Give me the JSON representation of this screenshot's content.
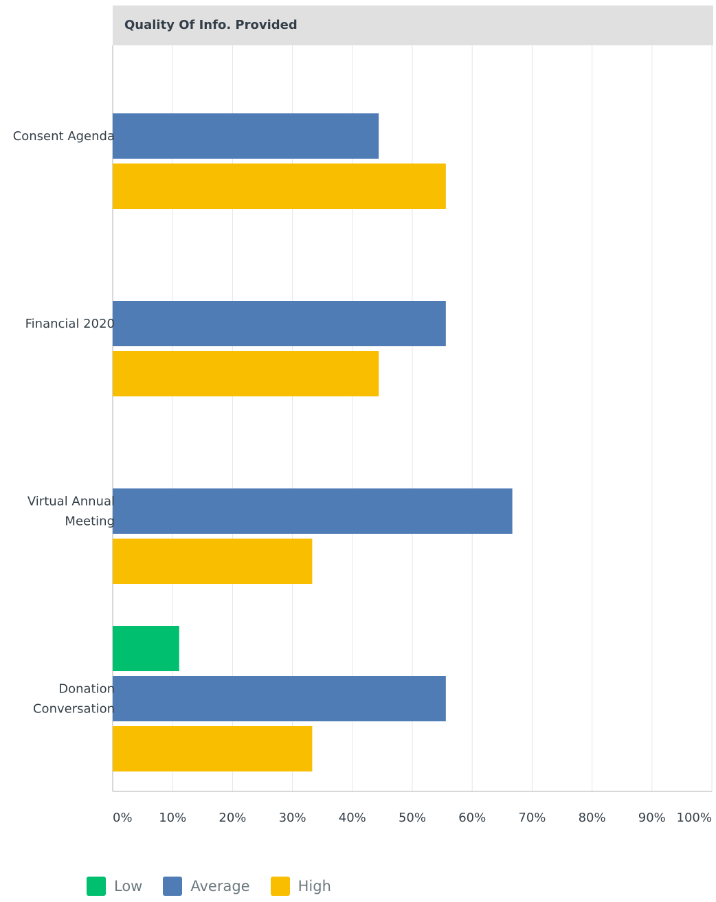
{
  "chart_data": {
    "type": "bar",
    "orientation": "horizontal",
    "title": "Quality Of Info. Provided",
    "categories": [
      [
        "Consent Agenda"
      ],
      [
        "Financial 2020"
      ],
      [
        "Virtual Annual",
        "Meeting"
      ],
      [
        "Donation",
        "Conversation"
      ]
    ],
    "series": [
      {
        "name": "Low",
        "color": "#00bf6f",
        "values": [
          0,
          0,
          0,
          11.1
        ]
      },
      {
        "name": "Average",
        "color": "#507cb6",
        "values": [
          44.4,
          55.6,
          66.7,
          55.6
        ]
      },
      {
        "name": "High",
        "color": "#f9be00",
        "values": [
          55.6,
          44.4,
          33.3,
          33.3
        ]
      }
    ],
    "xlim": [
      0,
      100
    ],
    "ticks": [
      "0%",
      "10%",
      "20%",
      "30%",
      "40%",
      "50%",
      "60%",
      "70%",
      "80%",
      "90%",
      "100%"
    ],
    "grid": true,
    "legend_position": "bottom-left",
    "colors": {
      "header_bg": "#e0e0e0",
      "grid": "#e6e6e6",
      "axis": "#b0b0b0"
    }
  }
}
